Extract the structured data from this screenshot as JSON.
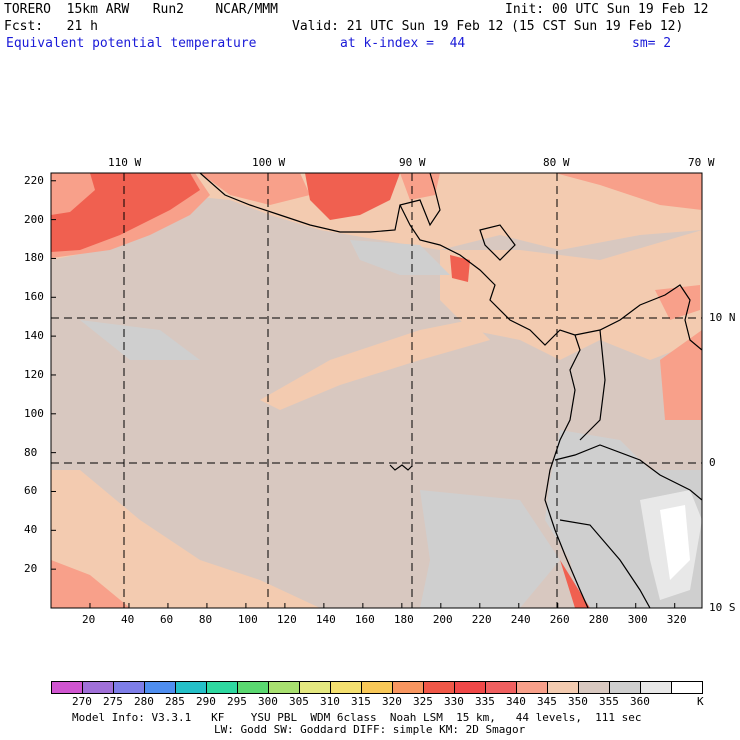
{
  "header": {
    "line1_left": "TORERO  15km ARW   Run2    NCAR/MMM",
    "line1_right": "Init: 00 UTC Sun 19 Feb 12",
    "line2_left": "Fcst:   21 h",
    "line2_right": "Valid: 21 UTC Sun 19 Feb 12 (15 CST Sun 19 Feb 12)",
    "line3_field": "Equivalent potential temperature",
    "line3_level": "at k-index =  44",
    "line3_smooth": "sm= 2"
  },
  "map": {
    "top_lon_labels": [
      "110 W",
      "100 W",
      "90 W",
      "80 W",
      "70 W"
    ],
    "right_lat_labels": [
      "10 N",
      "0",
      "10 S"
    ],
    "left_y_ticks": [
      "220",
      "200",
      "180",
      "160",
      "140",
      "120",
      "100",
      "80",
      "60",
      "40",
      "20"
    ],
    "bottom_x_ticks": [
      "20",
      "40",
      "60",
      "80",
      "100",
      "120",
      "140",
      "160",
      "180",
      "200",
      "220",
      "240",
      "260",
      "280",
      "300",
      "320"
    ]
  },
  "colorbar": {
    "colors": [
      "#d055d0",
      "#a070d8",
      "#7e7ee8",
      "#4f8ef0",
      "#25c0c8",
      "#2ed8a0",
      "#5ad870",
      "#a8e070",
      "#e4e880",
      "#f4e070",
      "#f8c858",
      "#f89660",
      "#f05848",
      "#f04848",
      "#f06060",
      "#f8a08a",
      "#f3cbb0",
      "#d8c8c0",
      "#cfcfcf",
      "#e8e8e8",
      "#ffffff"
    ],
    "labels": [
      "270",
      "275",
      "280",
      "285",
      "290",
      "295",
      "300",
      "305",
      "310",
      "315",
      "320",
      "325",
      "330",
      "335",
      "340",
      "345",
      "350",
      "355",
      "360"
    ],
    "unit": "K"
  },
  "footer": {
    "line1": "Model Info: V3.3.1   KF    YSU PBL  WDM 6class  Noah LSM  15 km,   44 levels,  111 sec",
    "line2": "LW: Godd SW: Goddard DIFF: simple KM: 2D Smagor"
  },
  "colors": {
    "title_blue": "#1a1ad8",
    "field_background": "#d8c8c0",
    "field_warm": "#f3cbb0",
    "field_hot": "#f06050",
    "field_cool": "#cfcfcf"
  }
}
